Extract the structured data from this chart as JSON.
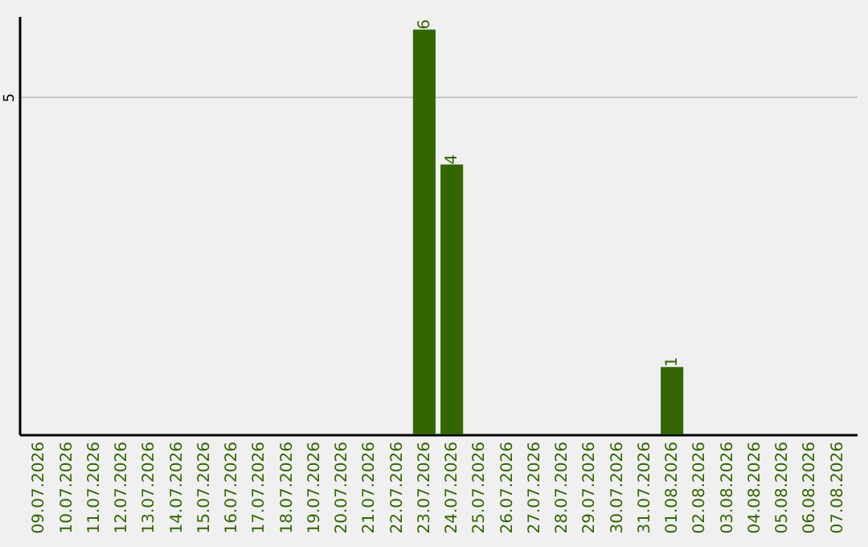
{
  "chart_data": {
    "type": "bar",
    "categories": [
      "09.07.2026",
      "10.07.2026",
      "11.07.2026",
      "12.07.2026",
      "13.07.2026",
      "14.07.2026",
      "15.07.2026",
      "16.07.2026",
      "17.07.2026",
      "18.07.2026",
      "19.07.2026",
      "20.07.2026",
      "21.07.2026",
      "22.07.2026",
      "23.07.2026",
      "24.07.2026",
      "25.07.2026",
      "26.07.2026",
      "27.07.2026",
      "28.07.2026",
      "29.07.2026",
      "30.07.2026",
      "31.07.2026",
      "01.08.2026",
      "02.08.2026",
      "03.08.2026",
      "04.08.2026",
      "05.08.2026",
      "06.08.2026",
      "07.08.2026"
    ],
    "values": [
      null,
      null,
      null,
      null,
      null,
      null,
      null,
      null,
      null,
      null,
      null,
      null,
      null,
      null,
      6,
      4,
      null,
      null,
      null,
      null,
      null,
      null,
      null,
      1,
      null,
      null,
      null,
      null,
      null,
      null
    ],
    "data_labels": true,
    "color": "#336600",
    "ylim": [
      0,
      6.2
    ],
    "yticks": [
      5
    ],
    "grid": "y"
  }
}
